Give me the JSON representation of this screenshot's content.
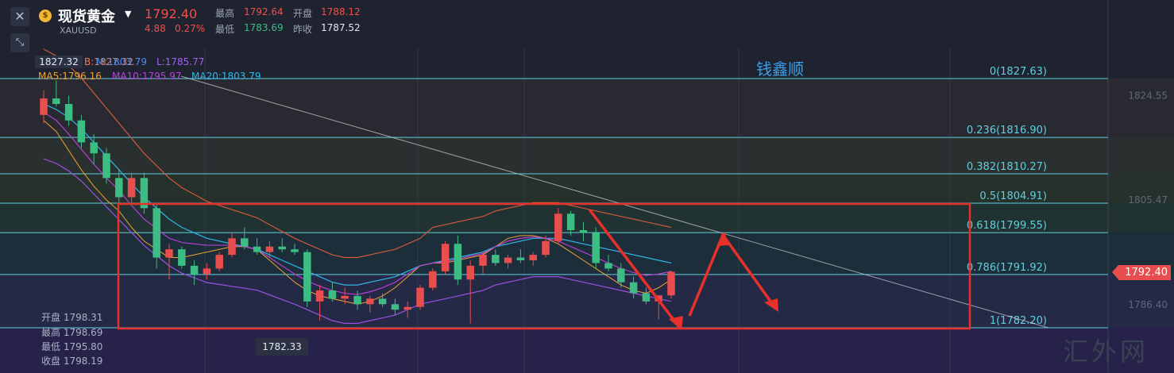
{
  "header": {
    "symbol_name": "现货黄金",
    "symbol_code": "XAUUSD",
    "coin_glyph": "$",
    "last_price": "1792.40",
    "change": "4.88",
    "change_pct": "0.27%",
    "high_label": "最高",
    "high_value": "1792.64",
    "open_label": "开盘",
    "open_value": "1788.12",
    "low_label": "最低",
    "low_value": "1783.69",
    "prev_label": "昨收",
    "prev_value": "1787.52",
    "close_icon": "close-icon",
    "collapse_icon": "collapse-arrows-icon"
  },
  "indicators": {
    "boll_text": "B:1827.32",
    "boll_m": "M:1803.79",
    "boll_l": "L:1785.77",
    "ma5": "MA5:1796.16",
    "ma10": "MA10:1795.97",
    "ma20": "MA20:1803.79"
  },
  "hover_ohlc": {
    "open": "开盘 1798.31",
    "high": "最高 1798.69",
    "low": "最低 1795.80",
    "close": "收盘 1798.19"
  },
  "tags": {
    "current_price": "1792.40",
    "low_marker": "1782.33",
    "high_marker": "1827.32"
  },
  "annotation_text": "钱鑫顺",
  "watermark": "汇外网",
  "chart_data": {
    "type": "candlestick",
    "y_axis_ticks": [
      1824.55,
      1805.47,
      1786.4
    ],
    "fib_levels": [
      {
        "label": "0(1827.63)",
        "value": 1827.63
      },
      {
        "label": "0.236(1816.90)",
        "value": 1816.9
      },
      {
        "label": "0.382(1810.27)",
        "value": 1810.27
      },
      {
        "label": "0.5(1804.91)",
        "value": 1804.91
      },
      {
        "label": "0.618(1799.55)",
        "value": 1799.55
      },
      {
        "label": "0.786(1791.92)",
        "value": 1791.92
      },
      {
        "label": "1(1782.20)",
        "value": 1782.2
      }
    ],
    "colors": {
      "up": "#e84e4e",
      "down": "#3dbd84",
      "fib_line": "#5fd0e0",
      "ma5": "#f0a030",
      "ma10": "#c040e0",
      "ma20": "#30b8e8",
      "boll_upper": "#d05a3a",
      "boll_lower": "#9a50e0",
      "range_box": "#e8302a",
      "trend_line": "#c8c8c8",
      "arrows": "#e8302a"
    },
    "candles": [
      [
        1821.0,
        1825.5,
        1819.5,
        1824.0
      ],
      [
        1824.0,
        1827.3,
        1822.5,
        1823.0
      ],
      [
        1823.0,
        1824.5,
        1819.0,
        1820.0
      ],
      [
        1820.0,
        1821.0,
        1815.0,
        1816.0
      ],
      [
        1816.0,
        1817.5,
        1812.0,
        1814.0
      ],
      [
        1814.0,
        1815.0,
        1808.5,
        1809.5
      ],
      [
        1809.5,
        1811.0,
        1804.5,
        1806.0
      ],
      [
        1806.0,
        1810.5,
        1805.0,
        1809.5
      ],
      [
        1809.5,
        1810.5,
        1803.0,
        1804.0
      ],
      [
        1804.0,
        1805.0,
        1793.0,
        1795.0
      ],
      [
        1795.0,
        1797.5,
        1791.0,
        1796.5
      ],
      [
        1796.5,
        1797.0,
        1793.0,
        1793.5
      ],
      [
        1793.5,
        1794.5,
        1790.0,
        1792.0
      ],
      [
        1792.0,
        1794.0,
        1791.0,
        1793.0
      ],
      [
        1793.0,
        1796.0,
        1792.5,
        1795.5
      ],
      [
        1795.5,
        1799.5,
        1795.0,
        1798.5
      ],
      [
        1798.5,
        1800.5,
        1796.5,
        1797.0
      ],
      [
        1797.0,
        1798.5,
        1795.5,
        1796.0
      ],
      [
        1796.0,
        1798.0,
        1795.0,
        1797.0
      ],
      [
        1797.0,
        1798.5,
        1796.0,
        1796.5
      ],
      [
        1796.5,
        1797.5,
        1795.5,
        1796.0
      ],
      [
        1796.0,
        1796.5,
        1786.0,
        1787.0
      ],
      [
        1787.0,
        1790.0,
        1783.5,
        1789.0
      ],
      [
        1789.0,
        1790.5,
        1787.0,
        1787.5
      ],
      [
        1787.5,
        1789.5,
        1786.5,
        1788.0
      ],
      [
        1788.0,
        1789.0,
        1785.5,
        1786.5
      ],
      [
        1786.5,
        1788.0,
        1785.0,
        1787.5
      ],
      [
        1787.5,
        1788.5,
        1786.0,
        1786.5
      ],
      [
        1786.5,
        1787.5,
        1784.5,
        1785.5
      ],
      [
        1785.5,
        1787.0,
        1784.0,
        1786.0
      ],
      [
        1786.0,
        1790.0,
        1785.5,
        1789.5
      ],
      [
        1789.5,
        1793.0,
        1789.0,
        1792.5
      ],
      [
        1792.5,
        1798.0,
        1792.0,
        1797.5
      ],
      [
        1797.5,
        1799.0,
        1790.0,
        1791.0
      ],
      [
        1791.0,
        1794.5,
        1783.0,
        1793.5
      ],
      [
        1793.5,
        1796.0,
        1792.0,
        1795.5
      ],
      [
        1795.5,
        1796.5,
        1793.5,
        1794.0
      ],
      [
        1794.0,
        1795.5,
        1793.0,
        1795.0
      ],
      [
        1795.0,
        1796.5,
        1794.0,
        1794.5
      ],
      [
        1794.5,
        1796.0,
        1793.5,
        1795.5
      ],
      [
        1795.5,
        1799.0,
        1795.0,
        1798.0
      ],
      [
        1798.0,
        1804.0,
        1797.5,
        1803.0
      ],
      [
        1803.0,
        1803.5,
        1799.0,
        1800.0
      ],
      [
        1800.0,
        1801.5,
        1798.0,
        1799.5
      ],
      [
        1799.5,
        1800.5,
        1793.0,
        1794.0
      ],
      [
        1794.0,
        1795.5,
        1792.5,
        1793.0
      ],
      [
        1793.0,
        1794.0,
        1789.5,
        1790.5
      ],
      [
        1790.5,
        1791.5,
        1787.5,
        1788.5
      ],
      [
        1788.5,
        1789.5,
        1786.5,
        1787.0
      ],
      [
        1787.0,
        1788.0,
        1783.7,
        1788.1
      ],
      [
        1788.1,
        1792.6,
        1787.5,
        1792.4
      ]
    ],
    "ma5_values": [
      1820.0,
      1818.0,
      1814.5,
      1811.0,
      1808.0,
      1805.5,
      1803.5,
      1800.5,
      1798.0,
      1796.5,
      1795.0,
      1795.0,
      1795.5,
      1796.0,
      1796.5,
      1797.0,
      1797.0,
      1796.5,
      1794.5,
      1792.5,
      1790.5,
      1789.0,
      1788.0,
      1787.5,
      1787.0,
      1786.5,
      1787.0,
      1788.0,
      1789.5,
      1791.5,
      1793.5,
      1794.0,
      1794.0,
      1794.5,
      1795.0,
      1795.5,
      1797.0,
      1798.5,
      1799.0,
      1799.0,
      1798.5,
      1797.5,
      1796.0,
      1794.5,
      1793.0,
      1791.5,
      1790.0,
      1789.0,
      1788.5,
      1789.5,
      1791.0
    ],
    "ma20_values": [
      1823.0,
      1822.0,
      1820.5,
      1818.5,
      1816.0,
      1813.5,
      1811.0,
      1808.5,
      1806.0,
      1804.0,
      1802.0,
      1800.5,
      1799.5,
      1798.5,
      1798.0,
      1797.5,
      1797.0,
      1796.5,
      1795.5,
      1794.5,
      1793.5,
      1792.5,
      1791.5,
      1790.5,
      1790.0,
      1790.0,
      1790.5,
      1791.0,
      1791.5,
      1792.5,
      1793.5,
      1794.0,
      1794.5,
      1795.0,
      1795.5,
      1796.0,
      1797.0,
      1797.5,
      1798.0,
      1798.5,
      1798.5,
      1798.5,
      1798.0,
      1797.5,
      1797.0,
      1796.5,
      1796.0,
      1795.5,
      1795.0,
      1794.5,
      1794.0
    ],
    "y_range": [
      1776.0,
      1834.0
    ]
  }
}
